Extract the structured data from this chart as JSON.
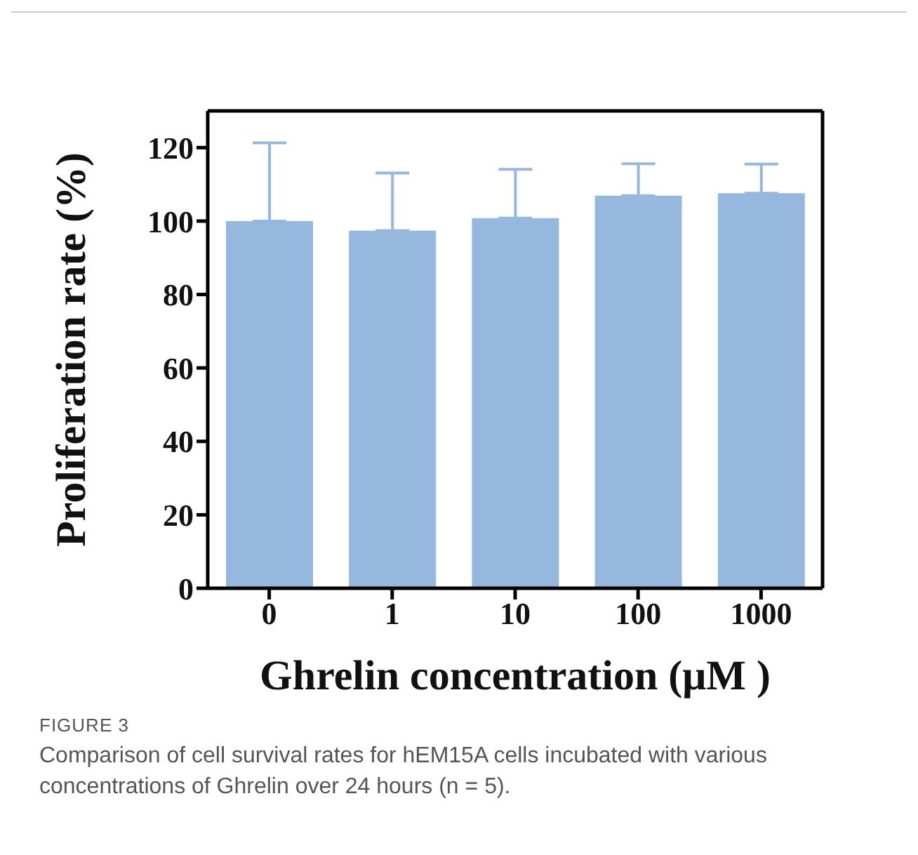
{
  "chart_data": {
    "type": "bar",
    "xlabel": "Ghrelin concentration (μM )",
    "ylabel": "Proliferation rate (%)",
    "categories": [
      "0",
      "1",
      "10",
      "100",
      "1000"
    ],
    "values": [
      100,
      97.4,
      100.8,
      106.9,
      107.6
    ],
    "errors": [
      [
        100,
        121.3
      ],
      [
        97.4,
        113.1
      ],
      [
        100.8,
        114.1
      ],
      [
        106.9,
        115.6
      ],
      [
        107.6,
        115.5
      ]
    ],
    "color": "#97b8de",
    "ylim": [
      0,
      130
    ],
    "yticks": [
      0,
      20,
      40,
      60,
      80,
      100,
      120
    ],
    "grid": false,
    "legend": false,
    "annotations": [
      "FIGURE 3",
      "Comparison of cell survival rates for hEM15A cells incubated with various concentrations of Ghrelin over 24 hours (n = 5)."
    ]
  }
}
